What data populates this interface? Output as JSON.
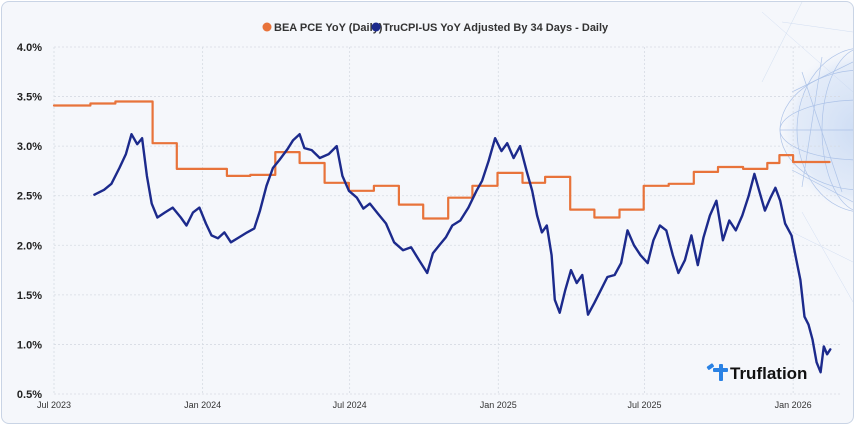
{
  "chart_data": {
    "type": "line",
    "legend": {
      "placement": "top-center"
    },
    "xlabel": "",
    "ylabel": "",
    "x_ticks": [
      "Jul 2023",
      "Jan 2024",
      "Jul 2024",
      "Jan 2025",
      "Jul 2025",
      "Jan 2026"
    ],
    "y_ticks": [
      "4.0%",
      "3.5%",
      "3.0%",
      "2.5%",
      "2.0%",
      "1.5%",
      "1.0%",
      "0.5%"
    ],
    "ylim": [
      0.5,
      4.0
    ],
    "xlim": [
      "2023-07-01",
      "2026-02-28"
    ],
    "grid": true,
    "logo_text": "Truflation",
    "series": [
      {
        "name": "BEA PCE YoY (Daily)",
        "color": "#e8733a",
        "step": true,
        "points": [
          [
            "2023-07-01",
            3.41
          ],
          [
            "2023-08-15",
            3.43
          ],
          [
            "2023-09-15",
            3.45
          ],
          [
            "2023-10-31",
            3.03
          ],
          [
            "2023-11-30",
            2.77
          ],
          [
            "2023-12-31",
            2.77
          ],
          [
            "2024-01-31",
            2.7
          ],
          [
            "2024-02-29",
            2.71
          ],
          [
            "2024-03-31",
            2.94
          ],
          [
            "2024-04-30",
            2.83
          ],
          [
            "2024-05-31",
            2.63
          ],
          [
            "2024-06-30",
            2.55
          ],
          [
            "2024-07-31",
            2.6
          ],
          [
            "2024-08-31",
            2.41
          ],
          [
            "2024-09-30",
            2.27
          ],
          [
            "2024-10-31",
            2.48
          ],
          [
            "2024-11-30",
            2.6
          ],
          [
            "2024-12-31",
            2.73
          ],
          [
            "2025-01-31",
            2.63
          ],
          [
            "2025-02-28",
            2.69
          ],
          [
            "2025-03-31",
            2.36
          ],
          [
            "2025-04-30",
            2.28
          ],
          [
            "2025-05-31",
            2.36
          ],
          [
            "2025-06-30",
            2.6
          ],
          [
            "2025-07-31",
            2.62
          ],
          [
            "2025-08-31",
            2.74
          ],
          [
            "2025-09-30",
            2.79
          ],
          [
            "2025-10-31",
            2.77
          ],
          [
            "2025-11-30",
            2.83
          ],
          [
            "2025-12-15",
            2.91
          ],
          [
            "2026-01-01",
            2.84
          ],
          [
            "2026-02-15",
            2.84
          ]
        ]
      },
      {
        "name": "TruCPI-US YoY Adjusted By 34 Days - Daily",
        "color": "#1c2a8c",
        "step": false,
        "points": [
          [
            "2023-08-20",
            2.51
          ],
          [
            "2023-09-01",
            2.56
          ],
          [
            "2023-09-10",
            2.62
          ],
          [
            "2023-09-20",
            2.78
          ],
          [
            "2023-09-28",
            2.92
          ],
          [
            "2023-10-05",
            3.12
          ],
          [
            "2023-10-12",
            3.02
          ],
          [
            "2023-10-18",
            3.08
          ],
          [
            "2023-10-24",
            2.7
          ],
          [
            "2023-10-30",
            2.42
          ],
          [
            "2023-11-06",
            2.28
          ],
          [
            "2023-11-15",
            2.33
          ],
          [
            "2023-11-25",
            2.38
          ],
          [
            "2023-12-05",
            2.28
          ],
          [
            "2023-12-12",
            2.2
          ],
          [
            "2023-12-20",
            2.33
          ],
          [
            "2023-12-28",
            2.38
          ],
          [
            "2024-01-05",
            2.22
          ],
          [
            "2024-01-12",
            2.1
          ],
          [
            "2024-01-20",
            2.07
          ],
          [
            "2024-01-28",
            2.13
          ],
          [
            "2024-02-05",
            2.03
          ],
          [
            "2024-02-15",
            2.08
          ],
          [
            "2024-02-25",
            2.13
          ],
          [
            "2024-03-05",
            2.17
          ],
          [
            "2024-03-12",
            2.35
          ],
          [
            "2024-03-20",
            2.6
          ],
          [
            "2024-03-28",
            2.78
          ],
          [
            "2024-04-05",
            2.86
          ],
          [
            "2024-04-15",
            2.97
          ],
          [
            "2024-04-22",
            3.06
          ],
          [
            "2024-04-30",
            3.12
          ],
          [
            "2024-05-06",
            2.98
          ],
          [
            "2024-05-15",
            2.96
          ],
          [
            "2024-05-25",
            2.88
          ],
          [
            "2024-06-05",
            2.92
          ],
          [
            "2024-06-15",
            3.0
          ],
          [
            "2024-06-22",
            2.7
          ],
          [
            "2024-06-30",
            2.55
          ],
          [
            "2024-07-10",
            2.48
          ],
          [
            "2024-07-18",
            2.37
          ],
          [
            "2024-07-26",
            2.42
          ],
          [
            "2024-08-05",
            2.32
          ],
          [
            "2024-08-15",
            2.22
          ],
          [
            "2024-08-25",
            2.03
          ],
          [
            "2024-09-05",
            1.95
          ],
          [
            "2024-09-15",
            1.98
          ],
          [
            "2024-09-25",
            1.85
          ],
          [
            "2024-10-05",
            1.72
          ],
          [
            "2024-10-12",
            1.92
          ],
          [
            "2024-10-20",
            2.0
          ],
          [
            "2024-10-28",
            2.08
          ],
          [
            "2024-11-05",
            2.2
          ],
          [
            "2024-11-15",
            2.25
          ],
          [
            "2024-11-25",
            2.38
          ],
          [
            "2024-12-05",
            2.55
          ],
          [
            "2024-12-12",
            2.65
          ],
          [
            "2024-12-20",
            2.85
          ],
          [
            "2024-12-28",
            3.08
          ],
          [
            "2025-01-05",
            2.95
          ],
          [
            "2025-01-12",
            3.03
          ],
          [
            "2025-01-20",
            2.88
          ],
          [
            "2025-01-28",
            3.0
          ],
          [
            "2025-02-05",
            2.75
          ],
          [
            "2025-02-12",
            2.55
          ],
          [
            "2025-02-18",
            2.3
          ],
          [
            "2025-02-24",
            2.13
          ],
          [
            "2025-03-02",
            2.2
          ],
          [
            "2025-03-08",
            1.9
          ],
          [
            "2025-03-12",
            1.45
          ],
          [
            "2025-03-18",
            1.32
          ],
          [
            "2025-03-25",
            1.55
          ],
          [
            "2025-04-01",
            1.75
          ],
          [
            "2025-04-08",
            1.62
          ],
          [
            "2025-04-15",
            1.7
          ],
          [
            "2025-04-22",
            1.3
          ],
          [
            "2025-04-30",
            1.42
          ],
          [
            "2025-05-08",
            1.55
          ],
          [
            "2025-05-16",
            1.68
          ],
          [
            "2025-05-25",
            1.7
          ],
          [
            "2025-06-02",
            1.82
          ],
          [
            "2025-06-10",
            2.15
          ],
          [
            "2025-06-18",
            2.0
          ],
          [
            "2025-06-26",
            1.9
          ],
          [
            "2025-07-05",
            1.82
          ],
          [
            "2025-07-12",
            2.05
          ],
          [
            "2025-07-20",
            2.2
          ],
          [
            "2025-07-28",
            2.15
          ],
          [
            "2025-08-05",
            1.9
          ],
          [
            "2025-08-12",
            1.72
          ],
          [
            "2025-08-20",
            1.85
          ],
          [
            "2025-08-28",
            2.1
          ],
          [
            "2025-09-05",
            1.8
          ],
          [
            "2025-09-12",
            2.08
          ],
          [
            "2025-09-20",
            2.3
          ],
          [
            "2025-09-28",
            2.45
          ],
          [
            "2025-10-06",
            2.05
          ],
          [
            "2025-10-14",
            2.25
          ],
          [
            "2025-10-22",
            2.15
          ],
          [
            "2025-10-30",
            2.3
          ],
          [
            "2025-11-07",
            2.5
          ],
          [
            "2025-11-14",
            2.72
          ],
          [
            "2025-11-20",
            2.55
          ],
          [
            "2025-11-27",
            2.35
          ],
          [
            "2025-12-04",
            2.48
          ],
          [
            "2025-12-10",
            2.58
          ],
          [
            "2025-12-16",
            2.45
          ],
          [
            "2025-12-22",
            2.22
          ],
          [
            "2025-12-30",
            2.1
          ],
          [
            "2026-01-05",
            1.85
          ],
          [
            "2026-01-10",
            1.65
          ],
          [
            "2026-01-15",
            1.28
          ],
          [
            "2026-01-20",
            1.2
          ],
          [
            "2026-01-25",
            1.05
          ],
          [
            "2026-01-30",
            0.82
          ],
          [
            "2026-02-04",
            0.72
          ],
          [
            "2026-02-08",
            0.98
          ],
          [
            "2026-02-12",
            0.9
          ],
          [
            "2026-02-16",
            0.95
          ]
        ]
      }
    ]
  }
}
